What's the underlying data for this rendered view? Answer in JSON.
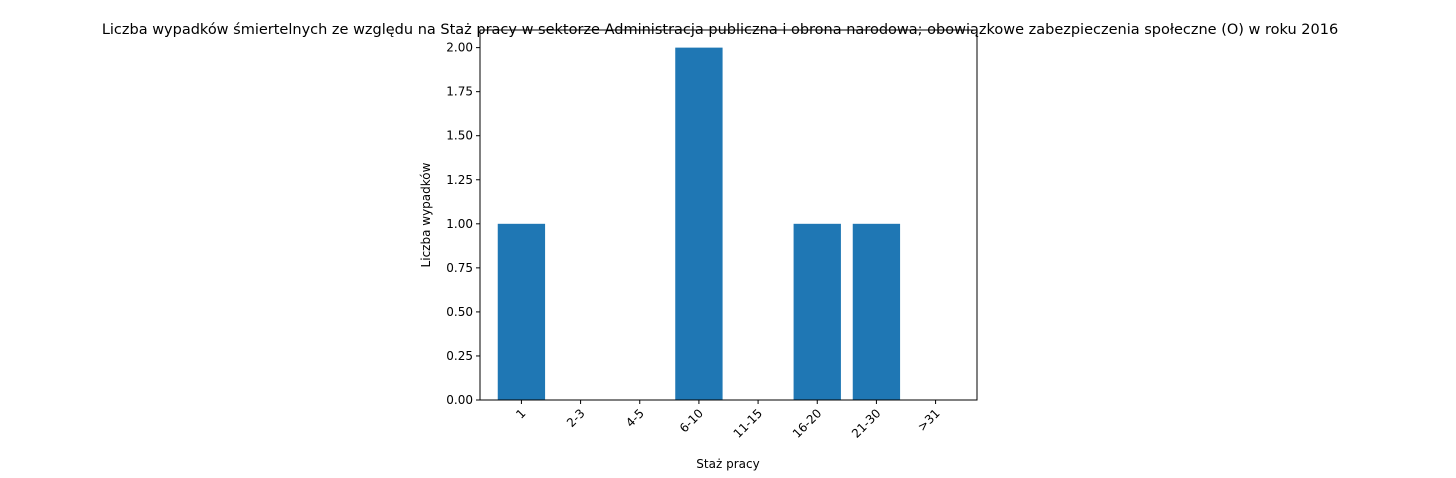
{
  "chart_data": {
    "type": "bar",
    "title": "Liczba wypadków śmiertelnych ze względu na Staż pracy w sektorze Administracja publiczna i obrona narodowa; obowiązkowe zabezpieczenia społeczne  (O)  w roku 2016",
    "xlabel": "Staż pracy",
    "ylabel": "Liczba wypadków",
    "categories": [
      "1",
      "2-3",
      "4-5",
      "6-10",
      "11-15",
      "16-20",
      "21-30",
      ">31"
    ],
    "values": [
      1,
      0,
      0,
      2,
      0,
      1,
      1,
      0
    ],
    "ylim": [
      0,
      2.1
    ],
    "yticks": [
      "0.00",
      "0.25",
      "0.50",
      "0.75",
      "1.00",
      "1.25",
      "1.50",
      "1.75",
      "2.00"
    ],
    "bar_color": "#1f77b4",
    "grid": false
  }
}
